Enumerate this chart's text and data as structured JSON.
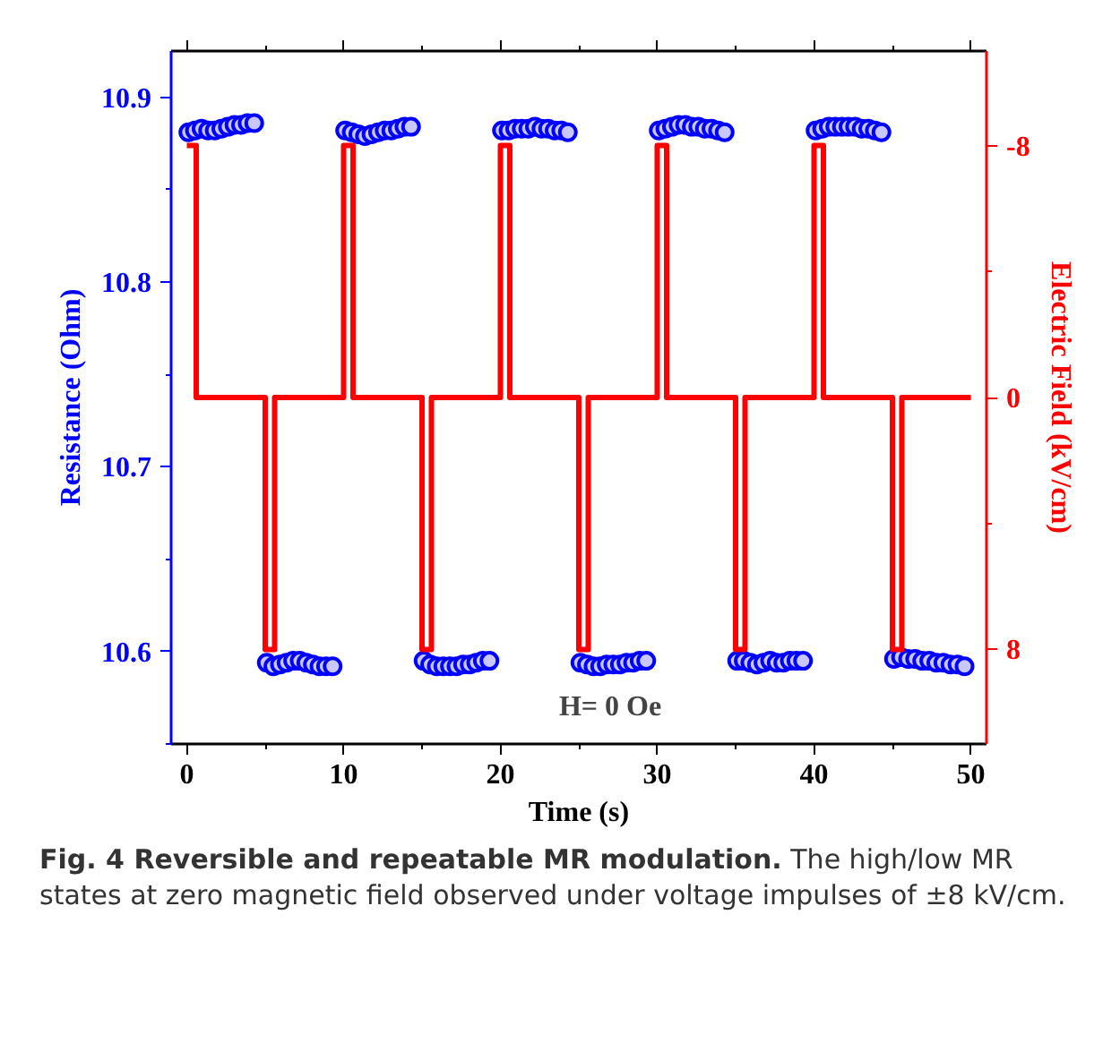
{
  "chart_data": {
    "type": "scatter",
    "xlabel": "Time (s)",
    "ylabel": "Resistance (Ohm)",
    "y2label": "Electric Field (kV/cm)",
    "xlim": [
      -1,
      51
    ],
    "xticks": [
      0,
      {
        "value": 5,
        "label": null
      },
      10,
      {
        "value": 15,
        "label": null
      },
      20,
      {
        "value": 25,
        "label": null
      },
      30,
      {
        "value": 35,
        "label": null
      },
      40,
      {
        "value": 45,
        "label": null
      },
      50
    ],
    "ylim": [
      10.55,
      10.925
    ],
    "yticks": [
      {
        "value": 10.55,
        "label": null
      },
      10.6,
      {
        "value": 10.65,
        "label": null
      },
      10.7,
      {
        "value": 10.75,
        "label": null
      },
      10.8,
      {
        "value": 10.85,
        "label": null
      },
      10.9
    ],
    "y2lim": [
      11,
      -11
    ],
    "y2ticks": [
      -8,
      {
        "value": -4,
        "label": null
      },
      0,
      {
        "value": 4,
        "label": null
      },
      8
    ],
    "line_style": "solid",
    "grid": false,
    "series": [
      {
        "marker": "circle",
        "color": "#0000ff",
        "x": [
          0.1,
          0.52,
          0.94,
          1.36,
          1.78,
          2.2,
          2.62,
          3.04,
          3.46,
          3.88,
          4.3,
          5.1,
          5.52,
          5.94,
          6.36,
          6.78,
          7.2,
          7.62,
          8.04,
          8.46,
          8.88,
          9.3,
          10.1,
          10.52,
          10.94,
          11.36,
          11.78,
          12.2,
          12.62,
          13.04,
          13.46,
          13.88,
          14.3,
          15.1,
          15.52,
          15.94,
          16.36,
          16.78,
          17.2,
          17.62,
          18.04,
          18.46,
          18.88,
          19.3,
          20.1,
          20.52,
          20.94,
          21.36,
          21.78,
          22.2,
          22.62,
          23.04,
          23.46,
          23.88,
          24.3,
          25.1,
          25.52,
          25.94,
          26.36,
          26.78,
          27.2,
          27.62,
          28.04,
          28.46,
          28.88,
          29.3,
          30.1,
          30.52,
          30.94,
          31.36,
          31.78,
          32.2,
          32.62,
          33.04,
          33.46,
          33.88,
          34.3,
          35.1,
          35.52,
          35.94,
          36.36,
          36.78,
          37.2,
          37.62,
          38.04,
          38.46,
          38.88,
          39.3,
          40.1,
          40.52,
          40.94,
          41.36,
          41.78,
          42.2,
          42.62,
          43.04,
          43.46,
          43.88,
          44.3,
          45.1,
          45.55,
          46.0,
          46.45,
          46.9,
          47.35,
          47.8,
          48.25,
          48.7,
          49.15,
          49.6
        ],
        "values": [
          10.881,
          10.882,
          10.883,
          10.882,
          10.882,
          10.883,
          10.884,
          10.885,
          10.885,
          10.886,
          10.886,
          10.594,
          10.592,
          10.593,
          10.594,
          10.595,
          10.595,
          10.594,
          10.593,
          10.592,
          10.592,
          10.592,
          10.882,
          10.881,
          10.88,
          10.879,
          10.88,
          10.881,
          10.882,
          10.882,
          10.883,
          10.884,
          10.884,
          10.595,
          10.593,
          10.592,
          10.592,
          10.592,
          10.592,
          10.593,
          10.593,
          10.594,
          10.595,
          10.595,
          10.882,
          10.882,
          10.883,
          10.883,
          10.883,
          10.884,
          10.883,
          10.883,
          10.882,
          10.882,
          10.881,
          10.594,
          10.593,
          10.592,
          10.592,
          10.593,
          10.593,
          10.593,
          10.594,
          10.594,
          10.595,
          10.595,
          10.882,
          10.883,
          10.884,
          10.885,
          10.885,
          10.884,
          10.884,
          10.883,
          10.883,
          10.882,
          10.881,
          10.595,
          10.595,
          10.594,
          10.593,
          10.594,
          10.595,
          10.594,
          10.594,
          10.595,
          10.595,
          10.595,
          10.882,
          10.883,
          10.884,
          10.884,
          10.884,
          10.884,
          10.884,
          10.883,
          10.883,
          10.882,
          10.881,
          10.596,
          10.597,
          10.596,
          10.596,
          10.595,
          10.595,
          10.594,
          10.594,
          10.593,
          10.593,
          10.592
        ]
      },
      {
        "type": "line",
        "axis": "y2",
        "color": "#ff0000",
        "x": [
          0,
          0.6,
          0.6,
          5.0,
          5.0,
          5.6,
          5.6,
          10.0,
          10.0,
          10.6,
          10.6,
          15.0,
          15.0,
          15.6,
          15.6,
          20.0,
          20.0,
          20.6,
          20.6,
          25.0,
          25.0,
          25.6,
          25.6,
          30.0,
          30.0,
          30.6,
          30.6,
          35.0,
          35.0,
          35.6,
          35.6,
          40.0,
          40.0,
          40.6,
          40.6,
          45.0,
          45.0,
          45.6,
          45.6,
          50.0
        ],
        "values": [
          -8,
          -8,
          0,
          0,
          8,
          8,
          0,
          0,
          -8,
          -8,
          0,
          0,
          8,
          8,
          0,
          0,
          -8,
          -8,
          0,
          0,
          8,
          8,
          0,
          0,
          -8,
          -8,
          0,
          0,
          8,
          8,
          0,
          0,
          -8,
          -8,
          0,
          0,
          8,
          8,
          0,
          0
        ]
      }
    ],
    "annotations": [
      "H= 0 Oe",
      "Fig. 4 Reversible and repeatable MR modulation.",
      "The high/low MR states at zero magnetic field observed under voltage impulses of ±8 kV/cm."
    ]
  }
}
